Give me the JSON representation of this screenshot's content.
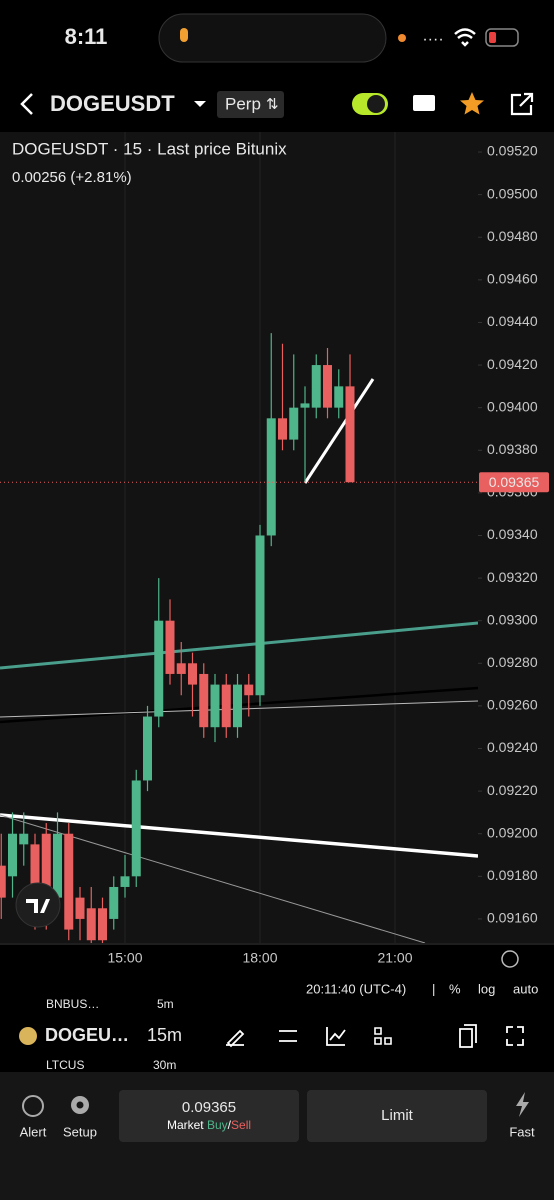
{
  "status_bar": {
    "time": "8:11"
  },
  "header": {
    "symbol": "DOGEUSDT",
    "market": "Perp"
  },
  "chart_data": {
    "type": "candlestick",
    "title": "DOGEUSDT · 15 · Last price Bitunix",
    "subtitle": "0.00256 (+2.81%)",
    "x": [
      12.25,
      12.5,
      12.75,
      13,
      13.25,
      13.5,
      13.75,
      14,
      14.25,
      14.5,
      14.75,
      15,
      15.25,
      15.5,
      15.75,
      16,
      16.25,
      16.5,
      16.75,
      17,
      17.25,
      17.5,
      17.75,
      18,
      18.25,
      18.5,
      18.75,
      19,
      19.25,
      19.5,
      19.75,
      20
    ],
    "open": [
      0.09185,
      0.0918,
      0.09195,
      0.09195,
      0.092,
      0.0917,
      0.092,
      0.0917,
      0.09165,
      0.09165,
      0.0916,
      0.09175,
      0.0918,
      0.09225,
      0.09255,
      0.093,
      0.0928,
      0.0928,
      0.09275,
      0.0925,
      0.0927,
      0.0925,
      0.0927,
      0.09265,
      0.0934,
      0.09395,
      0.09385,
      0.094,
      0.094,
      0.0942,
      0.094,
      0.0941
    ],
    "high": [
      0.092,
      0.0921,
      0.0921,
      0.092,
      0.09205,
      0.0921,
      0.09205,
      0.09175,
      0.09175,
      0.0917,
      0.0918,
      0.0919,
      0.0923,
      0.0926,
      0.0932,
      0.0931,
      0.0929,
      0.09285,
      0.0928,
      0.09275,
      0.09275,
      0.09275,
      0.09275,
      0.09345,
      0.09435,
      0.0943,
      0.09425,
      0.0941,
      0.09425,
      0.09428,
      0.09418,
      0.09425
    ],
    "low": [
      0.0916,
      0.0917,
      0.09185,
      0.09155,
      0.09155,
      0.09165,
      0.0915,
      0.0915,
      0.09145,
      0.0914,
      0.09155,
      0.0917,
      0.09175,
      0.0922,
      0.0925,
      0.0927,
      0.09265,
      0.09255,
      0.09245,
      0.09243,
      0.09245,
      0.09245,
      0.09255,
      0.0926,
      0.09335,
      0.0938,
      0.0938,
      0.09365,
      0.09395,
      0.09395,
      0.09395,
      0.09365
    ],
    "close": [
      0.0917,
      0.092,
      0.092,
      0.09165,
      0.0916,
      0.092,
      0.09155,
      0.0916,
      0.0915,
      0.0915,
      0.09175,
      0.0918,
      0.09225,
      0.09255,
      0.093,
      0.09275,
      0.09275,
      0.0927,
      0.0925,
      0.0927,
      0.0925,
      0.0927,
      0.09265,
      0.0934,
      0.09395,
      0.09385,
      0.094,
      0.09402,
      0.0942,
      0.094,
      0.0941,
      0.09365
    ],
    "up_color": "#4fb58b",
    "down_color": "#e8605f",
    "xlim": [
      12.2222,
      22.8444
    ],
    "xticks": [
      {
        "value": 15,
        "label": "15:00"
      },
      {
        "value": 18,
        "label": "18:00"
      },
      {
        "value": 21,
        "label": "21:00"
      }
    ],
    "ylim": [
      0.091487,
      0.095294
    ],
    "yticks": [
      {
        "value": 0.0916,
        "label": "0.09160"
      },
      {
        "value": 0.0918,
        "label": "0.09180"
      },
      {
        "value": 0.092,
        "label": "0.09200"
      },
      {
        "value": 0.0922,
        "label": "0.09220"
      },
      {
        "value": 0.0924,
        "label": "0.09240"
      },
      {
        "value": 0.0926,
        "label": "0.09260"
      },
      {
        "value": 0.0928,
        "label": "0.09280"
      },
      {
        "value": 0.093,
        "label": "0.09300"
      },
      {
        "value": 0.0932,
        "label": "0.09320"
      },
      {
        "value": 0.0934,
        "label": "0.09340"
      },
      {
        "value": 0.0936,
        "label": "0.09360"
      },
      {
        "value": 0.0938,
        "label": "0.09380"
      },
      {
        "value": 0.094,
        "label": "0.09400"
      },
      {
        "value": 0.0942,
        "label": "0.09420"
      },
      {
        "value": 0.0944,
        "label": "0.09440"
      },
      {
        "value": 0.0946,
        "label": "0.09460"
      },
      {
        "value": 0.0948,
        "label": "0.09480"
      },
      {
        "value": 0.095,
        "label": "0.09500"
      },
      {
        "value": 0.0952,
        "label": "0.09520"
      }
    ],
    "last_price": 0.09365,
    "last_price_color": "#e8605f"
  },
  "chart_footer": {
    "clock": "20:11:40 (UTC-4)",
    "percent": "%",
    "log": "log",
    "auto": "auto"
  },
  "toolbar": {
    "symbol": "DOGEU…",
    "interval": "15m",
    "watchlist": [
      {
        "symbol": "BNBUS…",
        "interval": "5m"
      },
      {
        "symbol": "LTCUS",
        "interval": "30m"
      }
    ]
  },
  "bottom_bar": {
    "alert": "Alert",
    "setup": "Setup",
    "price": "0.09365",
    "market": "Market",
    "buy": "Buy",
    "separator": "/",
    "sell": "Sell",
    "limit": "Limit",
    "fast": "Fast"
  }
}
